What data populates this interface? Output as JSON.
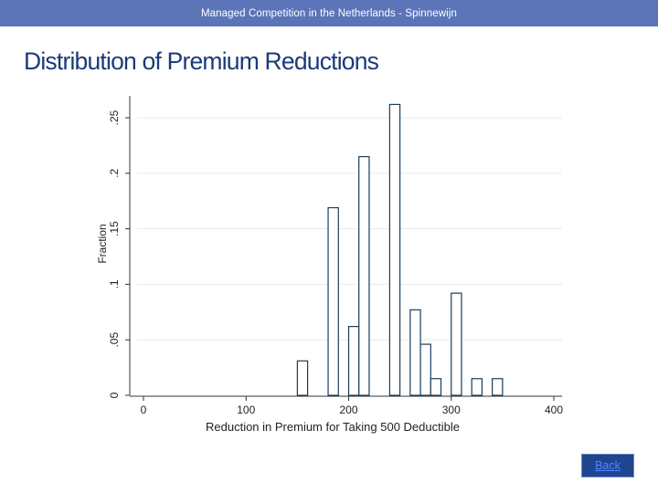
{
  "header": {
    "text": "Managed Competition in the Netherlands - Spinnewijn"
  },
  "slide": {
    "title": "Distribution of Premium Reductions"
  },
  "nav": {
    "back_label": "Back"
  },
  "colors": {
    "header_bg": "#5b74b8",
    "title": "#1c3a7a",
    "bar_stroke": "#1c3d5a",
    "gridline": "#e6ebef",
    "button_bg": "#1f4591",
    "button_text": "#4f86ff"
  },
  "chart_data": {
    "type": "bar",
    "title": "",
    "xlabel": "Reduction in Premium for Taking 500 Deductible",
    "ylabel": "Fraction",
    "xlim": [
      0,
      400
    ],
    "ylim": [
      0,
      0.26
    ],
    "x_ticks": [
      0,
      100,
      200,
      300,
      400
    ],
    "x_tick_labels": [
      "0",
      "100",
      "200",
      "300",
      "400"
    ],
    "y_ticks": [
      0,
      0.05,
      0.1,
      0.15,
      0.2,
      0.25
    ],
    "y_tick_labels": [
      "0",
      ".05",
      ".1",
      ".15",
      ".2",
      ".25"
    ],
    "grid": true,
    "bin_width": 10,
    "bins": [
      {
        "start": 150,
        "end": 160,
        "value": 0.031
      },
      {
        "start": 180,
        "end": 190,
        "value": 0.169
      },
      {
        "start": 200,
        "end": 210,
        "value": 0.062
      },
      {
        "start": 210,
        "end": 220,
        "value": 0.215
      },
      {
        "start": 240,
        "end": 250,
        "value": 0.262
      },
      {
        "start": 260,
        "end": 270,
        "value": 0.077
      },
      {
        "start": 270,
        "end": 280,
        "value": 0.046
      },
      {
        "start": 280,
        "end": 290,
        "value": 0.015
      },
      {
        "start": 300,
        "end": 310,
        "value": 0.092
      },
      {
        "start": 320,
        "end": 330,
        "value": 0.015
      },
      {
        "start": 340,
        "end": 350,
        "value": 0.015
      }
    ]
  }
}
